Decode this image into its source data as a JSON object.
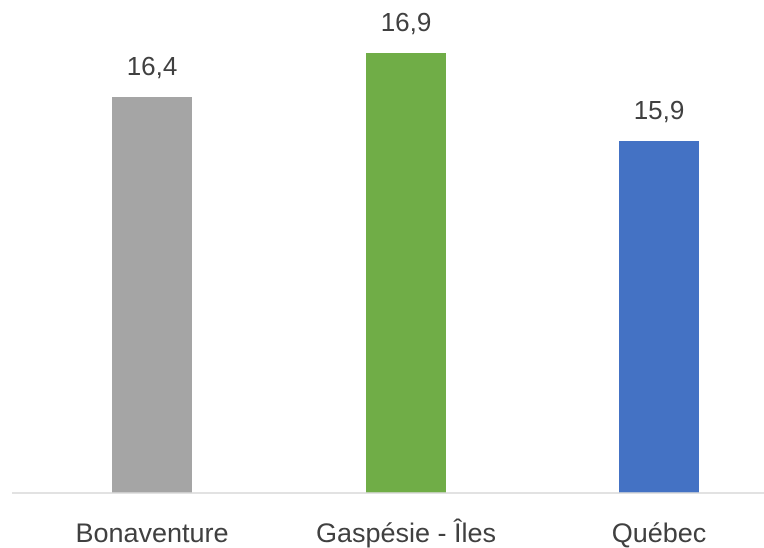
{
  "chart_data": {
    "type": "bar",
    "categories": [
      "Bonaventure",
      "Gaspésie - Îles",
      "Québec"
    ],
    "values": [
      16.4,
      16.9,
      15.9
    ],
    "value_labels": [
      "16,4",
      "16,9",
      "15,9"
    ],
    "colors": [
      "#a5a5a5",
      "#70ad47",
      "#4472c4"
    ],
    "axis_color": "#d9d9d9",
    "ylim": [
      11.9,
      17.1
    ],
    "title": "",
    "xlabel": "",
    "ylabel": "",
    "grid": false,
    "legend": "none"
  }
}
